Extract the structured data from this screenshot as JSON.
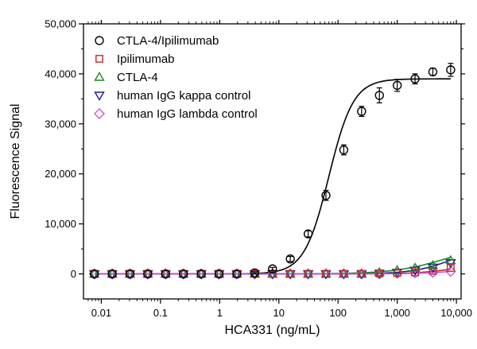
{
  "chart_data": {
    "type": "scatter",
    "title": "",
    "xlabel": "HCA331 (ng/mL)",
    "ylabel": "Fluorescence Signal",
    "x_scale": "log",
    "xlim": [
      0.005,
      12000
    ],
    "ylim": [
      -5000,
      50000
    ],
    "x_ticks": [
      0.01,
      0.1,
      1,
      10,
      100,
      1000,
      10000
    ],
    "x_tick_labels": [
      "0.01",
      "0.1",
      "1",
      "10",
      "100",
      "1,000",
      "10,000"
    ],
    "y_ticks": [
      0,
      10000,
      20000,
      30000,
      40000,
      50000
    ],
    "y_tick_labels": [
      "0",
      "10,000",
      "20,000",
      "30,000",
      "40,000",
      "50,000"
    ],
    "grid": false,
    "legend_position": "top-left",
    "x": [
      0.00763,
      0.0153,
      0.0305,
      0.061,
      0.122,
      0.244,
      0.488,
      0.977,
      1.95,
      3.91,
      7.81,
      15.6,
      31.3,
      62.5,
      125,
      250,
      500,
      1000,
      2000,
      4000,
      8000
    ],
    "series": [
      {
        "name": "CTLA-4/Ipilimumab",
        "marker": "circle",
        "color": "#000000",
        "values": [
          0,
          0,
          0,
          0,
          0,
          0,
          0,
          0,
          0,
          200,
          1000,
          3000,
          8000,
          15700,
          24800,
          32500,
          35700,
          37700,
          39000,
          40400,
          40800
        ],
        "errors": [
          0,
          0,
          0,
          0,
          0,
          0,
          0,
          0,
          0,
          200,
          300,
          500,
          600,
          1000,
          1000,
          1000,
          1500,
          1200,
          1000,
          700,
          1300
        ],
        "fit": {
          "bottom": 0,
          "top": 39000,
          "ec50": 70,
          "hill": 2.1
        }
      },
      {
        "name": "Ipilimumab",
        "marker": "square",
        "color": "#c0282d",
        "values": [
          0,
          0,
          0,
          0,
          0,
          0,
          0,
          0,
          0,
          0,
          0,
          0,
          0,
          0,
          0,
          0,
          100,
          200,
          300,
          600,
          1200
        ],
        "fit": {
          "bottom": 0,
          "top": 3000,
          "ec50": 15000,
          "hill": 1.2
        }
      },
      {
        "name": "CTLA-4",
        "marker": "triangle-up",
        "color": "#1e8a1e",
        "values": [
          0,
          0,
          0,
          0,
          0,
          0,
          0,
          0,
          0,
          0,
          0,
          0,
          0,
          0,
          0,
          0,
          300,
          700,
          1200,
          1700,
          2700
        ],
        "fit": {
          "bottom": 0,
          "top": 6000,
          "ec50": 6500,
          "hill": 1.0
        }
      },
      {
        "name": "human IgG kappa control",
        "marker": "triangle-down",
        "color": "#1e1e96",
        "values": [
          0,
          0,
          0,
          0,
          0,
          0,
          0,
          0,
          0,
          0,
          0,
          0,
          0,
          0,
          0,
          0,
          100,
          300,
          700,
          1300,
          2200
        ],
        "fit": {
          "bottom": 0,
          "top": 6000,
          "ec50": 9000,
          "hill": 1.3
        }
      },
      {
        "name": "human IgG lambda control",
        "marker": "diamond",
        "color": "#d256d2",
        "values": [
          0,
          0,
          0,
          0,
          0,
          0,
          0,
          0,
          0,
          0,
          0,
          0,
          0,
          0,
          0,
          0,
          0,
          100,
          200,
          300,
          500
        ],
        "fit": {
          "bottom": 0,
          "top": 2000,
          "ec50": 20000,
          "hill": 1.2
        }
      }
    ]
  }
}
